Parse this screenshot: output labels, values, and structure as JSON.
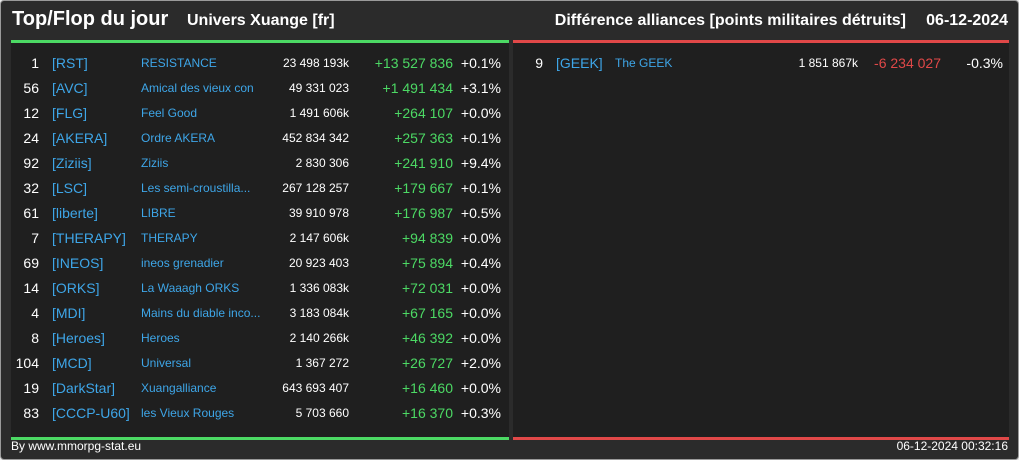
{
  "header": {
    "title": "Top/Flop du jour",
    "universe": "Univers Xuange [fr]",
    "subject": "Différence alliances [points militaires détruits]",
    "date": "06-12-2024"
  },
  "colors": {
    "positive": "#4cd964",
    "negative": "#e04848",
    "tag": "#3ea6e8",
    "background": "#1f1f1f"
  },
  "top": [
    {
      "rank": "1",
      "tag": "[RST]",
      "name": "RESISTANCE",
      "points": "23 498 193k",
      "diff": "+13 527 836",
      "pct": "+0.1%"
    },
    {
      "rank": "56",
      "tag": "[AVC]",
      "name": "Amical des vieux con",
      "points": "49 331 023",
      "diff": "+1 491 434",
      "pct": "+3.1%"
    },
    {
      "rank": "12",
      "tag": "[FLG]",
      "name": "Feel Good",
      "points": "1 491 606k",
      "diff": "+264 107",
      "pct": "+0.0%"
    },
    {
      "rank": "24",
      "tag": "[AKERA]",
      "name": "Ordre AKERA",
      "points": "452 834 342",
      "diff": "+257 363",
      "pct": "+0.1%"
    },
    {
      "rank": "92",
      "tag": "[Ziziis]",
      "name": "Ziziis",
      "points": "2 830 306",
      "diff": "+241 910",
      "pct": "+9.4%"
    },
    {
      "rank": "32",
      "tag": "[LSC]",
      "name": "Les semi-croustilla...",
      "points": "267 128 257",
      "diff": "+179 667",
      "pct": "+0.1%"
    },
    {
      "rank": "61",
      "tag": "[liberte]",
      "name": "LIBRE",
      "points": "39 910 978",
      "diff": "+176 987",
      "pct": "+0.5%"
    },
    {
      "rank": "7",
      "tag": "[THERAPY]",
      "name": "THERAPY",
      "points": "2 147 606k",
      "diff": "+94 839",
      "pct": "+0.0%"
    },
    {
      "rank": "69",
      "tag": "[INEOS]",
      "name": "ineos grenadier",
      "points": "20 923 403",
      "diff": "+75 894",
      "pct": "+0.4%"
    },
    {
      "rank": "14",
      "tag": "[ORKS]",
      "name": "La Waaagh ORKS",
      "points": "1 336 083k",
      "diff": "+72 031",
      "pct": "+0.0%"
    },
    {
      "rank": "4",
      "tag": "[MDI]",
      "name": "Mains du diable inco...",
      "points": "3 183 084k",
      "diff": "+67 165",
      "pct": "+0.0%"
    },
    {
      "rank": "8",
      "tag": "[Heroes]",
      "name": "Heroes",
      "points": "2 140 266k",
      "diff": "+46 392",
      "pct": "+0.0%"
    },
    {
      "rank": "104",
      "tag": "[MCD]",
      "name": "Universal",
      "points": "1 367 272",
      "diff": "+26 727",
      "pct": "+2.0%"
    },
    {
      "rank": "19",
      "tag": "[DarkStar]",
      "name": "Xuangalliance",
      "points": "643 693 407",
      "diff": "+16 460",
      "pct": "+0.0%"
    },
    {
      "rank": "83",
      "tag": "[CCCP-U60]",
      "name": "les Vieux Rouges",
      "points": "5 703 660",
      "diff": "+16 370",
      "pct": "+0.3%"
    }
  ],
  "flop": [
    {
      "rank": "9",
      "tag": "[GEEK]",
      "name": "The GEEK",
      "points": "1 851 867k",
      "diff": "-6 234 027",
      "pct": "-0.3%"
    }
  ],
  "footer": {
    "credit": "By www.mmorpg-stat.eu",
    "timestamp": "06-12-2024 00:32:16"
  }
}
